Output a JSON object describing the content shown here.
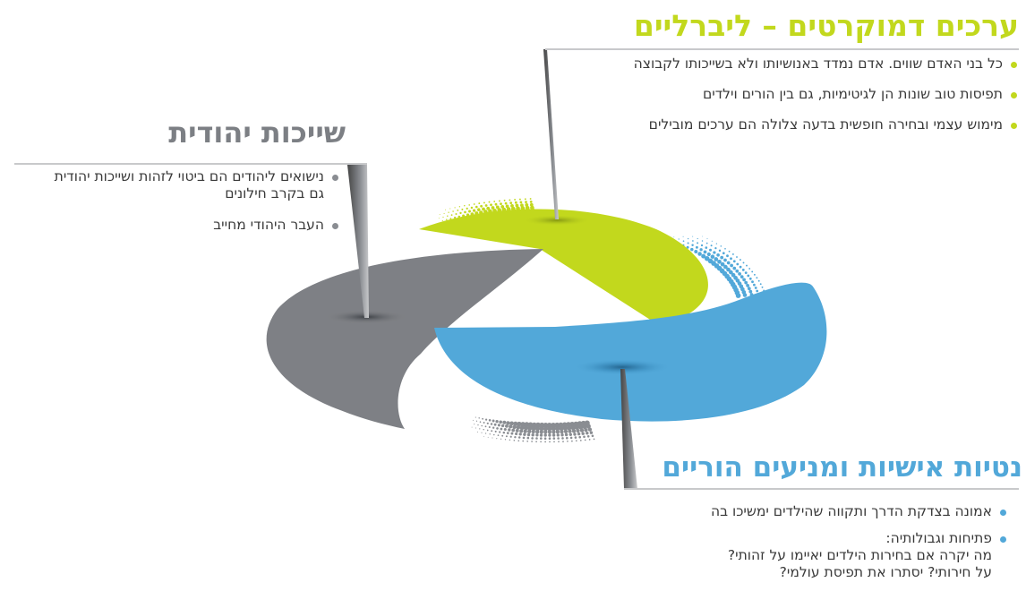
{
  "sections": {
    "liberal": {
      "title": "ערכים דמוקרטים – ליברליים",
      "color": "#c2d81d",
      "bullets": [
        "כל בני האדם שווים. אדם נמדד באנושיותו ולא בשייכותו לקבוצה",
        "תפיסות טוב שונות הן לגיטימיות, גם בין הורים וילדים",
        "מימוש עצמי ובחירה חופשית בדעה צלולה הם ערכים מובילים"
      ]
    },
    "jewish": {
      "title": "שייכות יהודית",
      "color": "#7c7f84",
      "bullets": [
        "נישואים ליהודים הם ביטוי לזהות ושייכות יהודית\nגם בקרב חילונים",
        "העבר היהודי מחייב"
      ]
    },
    "personal": {
      "title": "נטיות אישיות ומניעים הוריים",
      "color": "#52a8d9",
      "bullets": [
        "אמונה בצדקת הדרך ותקווה שהילדים ימשיכו בה",
        "פתיחות וגבולותיה:\nמה יקרה אם בחירות הילדים יאיימו על זהותי?\nעל חירותי? יסתרו את תפיסת עולמי?"
      ]
    }
  }
}
